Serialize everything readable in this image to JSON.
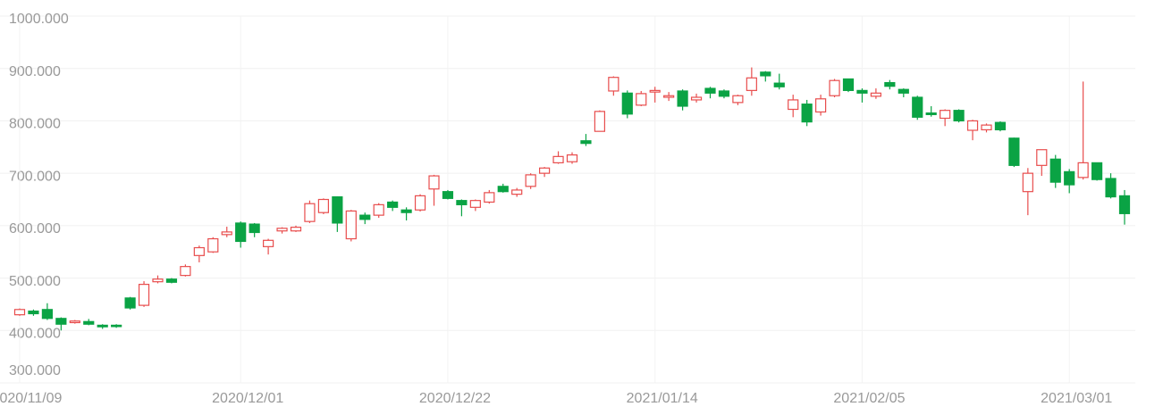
{
  "chart_data": {
    "type": "candlestick",
    "categories": [
      "2020/11/09",
      null,
      null,
      null,
      null,
      null,
      null,
      null,
      null,
      null,
      null,
      null,
      null,
      null,
      null,
      null,
      "2020/12/01",
      null,
      null,
      null,
      null,
      null,
      null,
      null,
      null,
      null,
      null,
      null,
      null,
      null,
      null,
      "2020/12/22",
      null,
      null,
      null,
      null,
      null,
      null,
      null,
      null,
      null,
      null,
      null,
      null,
      null,
      null,
      "2021/01/14",
      null,
      null,
      null,
      null,
      null,
      null,
      null,
      null,
      null,
      null,
      null,
      null,
      null,
      null,
      "2021/02/05",
      null,
      null,
      null,
      null,
      null,
      null,
      null,
      null,
      null,
      null,
      null,
      null,
      null,
      null,
      "2021/03/01",
      null,
      null,
      null,
      null
    ],
    "open": [
      430,
      437,
      440,
      423,
      415,
      417,
      410,
      410,
      462,
      448,
      493,
      498,
      505,
      543,
      550,
      583,
      605,
      603,
      560,
      590,
      590,
      608,
      625,
      655,
      575,
      620,
      620,
      645,
      630,
      630,
      670,
      665,
      648,
      635,
      645,
      675,
      660,
      675,
      700,
      720,
      722,
      762,
      780,
      857,
      853,
      830,
      855,
      845,
      857,
      840,
      862,
      857,
      835,
      858,
      893,
      872,
      822,
      832,
      817,
      848,
      880,
      858,
      847,
      873,
      860,
      845,
      815,
      805,
      820,
      782,
      783,
      797,
      767,
      665,
      715,
      727,
      703,
      692,
      720,
      690,
      657
    ],
    "high": [
      442,
      440,
      452,
      425,
      420,
      422,
      412,
      412,
      464,
      494,
      505,
      500,
      526,
      562,
      578,
      598,
      608,
      605,
      575,
      597,
      600,
      648,
      652,
      656,
      630,
      625,
      643,
      648,
      635,
      660,
      697,
      668,
      650,
      650,
      668,
      680,
      672,
      700,
      712,
      742,
      740,
      775,
      820,
      885,
      858,
      857,
      865,
      855,
      860,
      852,
      865,
      860,
      850,
      902,
      895,
      890,
      850,
      840,
      850,
      880,
      880,
      862,
      862,
      878,
      862,
      848,
      828,
      822,
      822,
      802,
      795,
      799,
      768,
      710,
      745,
      735,
      708,
      875,
      720,
      700,
      668
    ],
    "low": [
      428,
      428,
      420,
      400,
      413,
      410,
      403,
      405,
      440,
      445,
      490,
      490,
      503,
      530,
      548,
      578,
      558,
      578,
      545,
      585,
      588,
      605,
      622,
      588,
      570,
      603,
      615,
      628,
      610,
      627,
      638,
      650,
      618,
      628,
      642,
      663,
      655,
      670,
      693,
      718,
      718,
      752,
      780,
      848,
      805,
      828,
      835,
      838,
      820,
      835,
      843,
      843,
      830,
      848,
      875,
      860,
      807,
      790,
      810,
      845,
      855,
      835,
      842,
      860,
      845,
      802,
      808,
      790,
      797,
      763,
      778,
      780,
      712,
      620,
      695,
      672,
      662,
      688,
      686,
      652,
      602
    ],
    "close": [
      440,
      432,
      423,
      412,
      418,
      412,
      407,
      408,
      443,
      488,
      498,
      492,
      522,
      558,
      575,
      588,
      570,
      587,
      572,
      595,
      597,
      642,
      650,
      605,
      628,
      612,
      640,
      635,
      625,
      657,
      695,
      652,
      640,
      648,
      663,
      665,
      668,
      697,
      710,
      732,
      735,
      757,
      818,
      883,
      813,
      852,
      858,
      848,
      828,
      845,
      853,
      847,
      848,
      882,
      886,
      865,
      840,
      798,
      842,
      877,
      858,
      853,
      853,
      866,
      853,
      807,
      812,
      820,
      800,
      800,
      792,
      783,
      715,
      700,
      745,
      683,
      678,
      720,
      688,
      655,
      623
    ],
    "up_color": "#e84d4d",
    "down_color": "#0aa344",
    "ylim": [
      300,
      1000
    ],
    "yticks": [
      {
        "value": 300,
        "label": "300.000"
      },
      {
        "value": 400,
        "label": "400.000"
      },
      {
        "value": 500,
        "label": "500.000"
      },
      {
        "value": 600,
        "label": "600.000"
      },
      {
        "value": 700,
        "label": "700.000"
      },
      {
        "value": 800,
        "label": "800.000"
      },
      {
        "value": 900,
        "label": "900.000"
      },
      {
        "value": 1000,
        "label": "1000.000"
      }
    ],
    "grid": true
  }
}
